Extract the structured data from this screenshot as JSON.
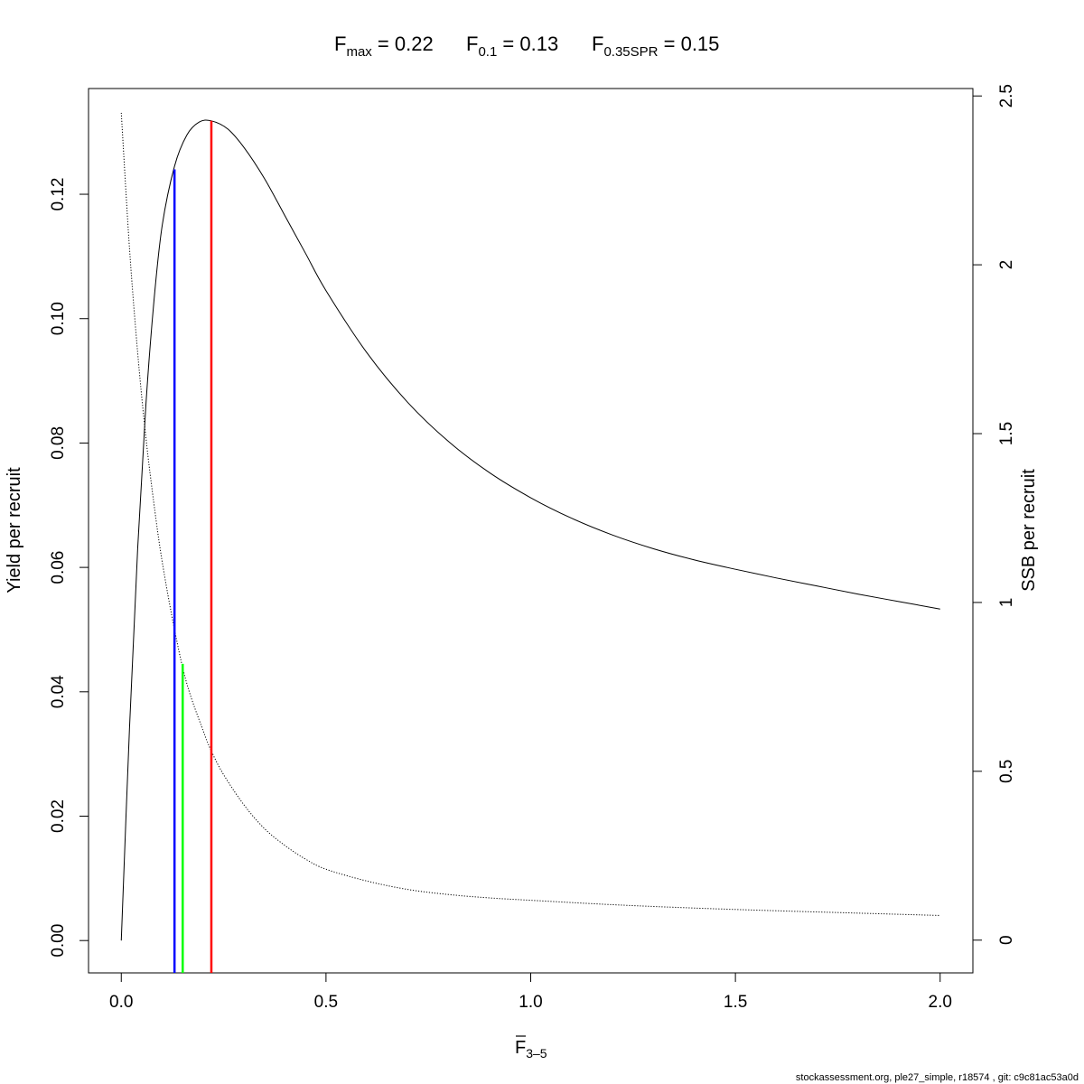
{
  "chart_data": {
    "type": "line",
    "title": {
      "fmax": {
        "base": "F",
        "sub": "max",
        "value": "0.22"
      },
      "f01": {
        "base": "F",
        "sub": "0.1",
        "value": "0.13"
      },
      "f035": {
        "base": "F",
        "sub": "0.35SPR",
        "value": "0.15"
      }
    },
    "xlabel": {
      "base": "F",
      "sub": "3–5"
    },
    "ylabel": "Yield per recruit",
    "y2label": "SSB per recruit",
    "xlim": [
      -0.08,
      2.08
    ],
    "ylim": [
      -0.0052,
      0.137
    ],
    "y2lim": [
      -0.097,
      2.522
    ],
    "x_ticks": [
      0,
      0.5,
      1,
      1.5,
      2
    ],
    "x_tick_labels": [
      "0.0",
      "0.5",
      "1.0",
      "1.5",
      "2.0"
    ],
    "y_ticks": [
      0,
      0.02,
      0.04,
      0.06,
      0.08,
      0.1,
      0.12
    ],
    "y_tick_labels": [
      "0.00",
      "0.02",
      "0.04",
      "0.06",
      "0.08",
      "0.10",
      "0.12"
    ],
    "y2_ticks": [
      0,
      0.5,
      1,
      1.5,
      2,
      2.5
    ],
    "y2_tick_labels": [
      "0",
      "0.5",
      "1",
      "1.5",
      "2",
      "2.5"
    ],
    "series": [
      {
        "axis": "left",
        "style": "solid",
        "color": "#000000",
        "x": [
          0,
          0.02,
          0.04,
          0.06,
          0.08,
          0.1,
          0.13,
          0.16,
          0.19,
          0.22,
          0.26,
          0.3,
          0.35,
          0.4,
          0.45,
          0.5,
          0.6,
          0.7,
          0.8,
          0.9,
          1.0,
          1.1,
          1.2,
          1.3,
          1.4,
          1.5,
          1.6,
          1.7,
          1.8,
          1.9,
          2.0
        ],
        "values": [
          0,
          0.034,
          0.063,
          0.086,
          0.103,
          0.115,
          0.1245,
          0.1295,
          0.1316,
          0.1318,
          0.1305,
          0.1275,
          0.1225,
          0.1165,
          0.1105,
          0.1045,
          0.0945,
          0.0865,
          0.0802,
          0.0752,
          0.0712,
          0.0679,
          0.0652,
          0.063,
          0.0612,
          0.0597,
          0.0583,
          0.057,
          0.0557,
          0.0545,
          0.0533
        ]
      },
      {
        "axis": "right",
        "style": "dotted",
        "color": "#000000",
        "x": [
          0,
          0.02,
          0.04,
          0.06,
          0.08,
          0.1,
          0.13,
          0.16,
          0.2,
          0.22,
          0.25,
          0.3,
          0.35,
          0.4,
          0.45,
          0.5,
          0.6,
          0.7,
          0.8,
          0.9,
          1.0,
          1.2,
          1.4,
          1.6,
          1.8,
          2.0
        ],
        "values": [
          2.45,
          2.05,
          1.74,
          1.49,
          1.29,
          1.12,
          0.92,
          0.76,
          0.62,
          0.56,
          0.49,
          0.4,
          0.33,
          0.28,
          0.24,
          0.21,
          0.175,
          0.15,
          0.135,
          0.125,
          0.118,
          0.105,
          0.095,
          0.087,
          0.08,
          0.073
        ]
      }
    ],
    "reference_lines": [
      {
        "label": "F0.1",
        "x": 0.13,
        "y": 0.124,
        "color": "#0000ff"
      },
      {
        "label": "F0.35SPR",
        "x": 0.15,
        "y": 0.0445,
        "color": "#00ff00"
      },
      {
        "label": "Fmax",
        "x": 0.22,
        "y": 0.1318,
        "color": "#ff0000"
      }
    ]
  },
  "footer": "stockassessment.org, ple27_simple, r18574 , git: c9c81ac53a0d"
}
